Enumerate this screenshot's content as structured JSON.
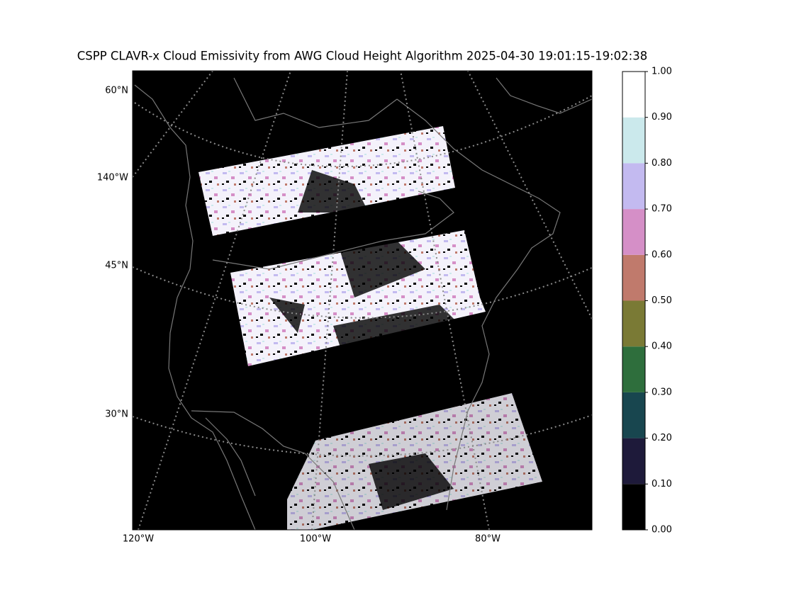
{
  "title": "CSPP CLAVR-x Cloud Emissivity from AWG Cloud Height Algorithm 2025-04-30 19:01:15-19:02:38",
  "map": {
    "left_labels": [
      "60°N",
      "140°W",
      "45°N",
      "30°N"
    ],
    "bottom_labels": [
      "120°W",
      "100°W",
      "80°W"
    ]
  },
  "colorbar": {
    "lim": [
      0,
      1
    ],
    "ticks": [
      {
        "value": 0,
        "label": "0.00"
      },
      {
        "value": 0.1,
        "label": "0.10"
      },
      {
        "value": 0.2,
        "label": "0.20"
      },
      {
        "value": 0.3,
        "label": "0.30"
      },
      {
        "value": 0.4,
        "label": "0.40"
      },
      {
        "value": 0.5,
        "label": "0.50"
      },
      {
        "value": 0.6,
        "label": "0.60"
      },
      {
        "value": 0.7,
        "label": "0.70"
      },
      {
        "value": 0.8,
        "label": "0.80"
      },
      {
        "value": 0.9,
        "label": "0.90"
      },
      {
        "value": 1,
        "label": "1.00"
      }
    ],
    "colors": [
      "#000000",
      "#1e1a3a",
      "#18464f",
      "#2e6e3c",
      "#7a7a35",
      "#c07a6c",
      "#d58fc7",
      "#c3baf0",
      "#cbe9ec",
      "#ffffff"
    ]
  }
}
